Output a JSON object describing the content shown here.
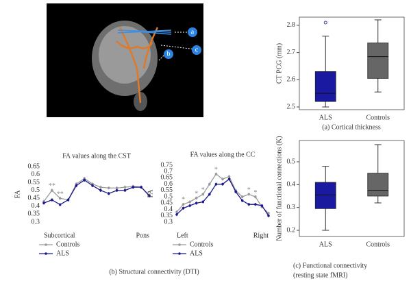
{
  "brain_image": {
    "labels": [
      "a",
      "b",
      "c"
    ]
  },
  "panel_b_caption": "(b) Structural connectivity (DTI)",
  "chart_data": [
    {
      "type": "line",
      "title": "FA values along the CST",
      "y_label": "FA",
      "categories": [
        "Subcortical",
        null,
        null,
        null,
        null,
        null,
        null,
        null,
        null,
        null,
        null,
        null,
        null,
        "Pons"
      ],
      "series": [
        {
          "name": "Controls",
          "color": "#999999",
          "values": [
            0.43,
            0.5,
            0.45,
            0.44,
            0.54,
            0.575,
            0.54,
            0.52,
            0.515,
            0.515,
            0.52,
            0.525,
            0.52,
            0.47
          ],
          "errors": [
            0.01,
            0.01,
            0.01,
            0.01,
            0.01,
            0.01,
            0.01,
            0.01,
            0.01,
            0.01,
            0.01,
            0.01,
            0.01,
            0.01
          ]
        },
        {
          "name": "ALS",
          "color": "#1a1a8c",
          "values": [
            0.42,
            0.44,
            0.41,
            0.44,
            0.53,
            0.565,
            0.53,
            0.5,
            0.48,
            0.5,
            0.5,
            0.52,
            0.52,
            0.465
          ],
          "errors": [
            0.01,
            0.01,
            0.01,
            0.01,
            0.01,
            0.01,
            0.01,
            0.01,
            0.01,
            0.01,
            0.01,
            0.01,
            0.01,
            0.01
          ]
        }
      ],
      "annotations": [
        {
          "text": "**",
          "category": 1,
          "y": 0.525
        },
        {
          "text": "**",
          "category": 2,
          "y": 0.475
        }
      ],
      "ylim": [
        0.3,
        0.65
      ],
      "yticks": [
        0.3,
        0.35,
        0.4,
        0.45,
        0.5,
        0.55,
        0.6,
        0.65
      ]
    },
    {
      "type": "line",
      "title": "FA values along the CC",
      "y_label": "FA",
      "categories": [
        "Left",
        null,
        null,
        null,
        null,
        null,
        null,
        null,
        null,
        null,
        null,
        null,
        null,
        null,
        "Right"
      ],
      "series": [
        {
          "name": "Controls",
          "color": "#999999",
          "values": [
            0.38,
            0.44,
            0.46,
            0.49,
            0.52,
            0.6,
            0.68,
            0.64,
            0.66,
            0.55,
            0.5,
            0.52,
            0.5,
            0.42,
            0.37
          ],
          "errors": [
            0.012,
            0.012,
            0.012,
            0.012,
            0.012,
            0.012,
            0.012,
            0.012,
            0.012,
            0.012,
            0.012,
            0.012,
            0.012,
            0.012,
            0.012
          ]
        },
        {
          "name": "ALS",
          "color": "#1a1a8c",
          "values": [
            0.36,
            0.41,
            0.43,
            0.45,
            0.46,
            0.52,
            0.6,
            0.6,
            0.64,
            0.54,
            0.47,
            0.44,
            0.44,
            0.43,
            0.35
          ],
          "errors": [
            0.012,
            0.012,
            0.012,
            0.012,
            0.012,
            0.012,
            0.012,
            0.012,
            0.012,
            0.012,
            0.012,
            0.012,
            0.012,
            0.012,
            0.012
          ]
        }
      ],
      "annotations": [
        {
          "text": "*",
          "category": 1,
          "y": 0.475
        },
        {
          "text": "*",
          "category": 3,
          "y": 0.52
        },
        {
          "text": "*",
          "category": 4,
          "y": 0.55
        },
        {
          "text": "*",
          "category": 6,
          "y": 0.71
        },
        {
          "text": "*",
          "category": 11,
          "y": 0.55
        },
        {
          "text": "*",
          "category": 12,
          "y": 0.53
        }
      ],
      "ylim": [
        0.3,
        0.75
      ],
      "yticks": [
        0.3,
        0.35,
        0.4,
        0.45,
        0.5,
        0.55,
        0.6,
        0.65,
        0.7,
        0.75
      ]
    },
    {
      "type": "box",
      "y_label": "CT PCG (mm)",
      "caption": [
        "(a) Cortical thickness"
      ],
      "categories": [
        "ALS",
        "Controls"
      ],
      "boxes": [
        {
          "color": "#1a1aa0",
          "min": 2.5,
          "q1": 2.52,
          "median": 2.55,
          "q3": 2.63,
          "max": 2.76,
          "outliers": [
            2.81
          ]
        },
        {
          "color": "#666666",
          "min": 2.555,
          "q1": 2.605,
          "median": 2.685,
          "q3": 2.735,
          "max": 2.82,
          "outliers": []
        }
      ],
      "ylim": [
        2.49,
        2.83
      ],
      "yticks": [
        2.5,
        2.6,
        2.7,
        2.8
      ]
    },
    {
      "type": "box",
      "y_label": "Number of functional connections (K)",
      "caption": [
        "(c) Functional connectivity",
        "(resting state fMRI)"
      ],
      "categories": [
        "ALS",
        "Controls"
      ],
      "boxes": [
        {
          "color": "#1a1aa0",
          "min": 0.2,
          "q1": 0.295,
          "median": 0.355,
          "q3": 0.41,
          "max": 0.48,
          "outliers": []
        },
        {
          "color": "#666666",
          "min": 0.32,
          "q1": 0.35,
          "median": 0.375,
          "q3": 0.45,
          "max": 0.575,
          "outliers": []
        }
      ],
      "ylim": [
        0.173,
        0.593
      ],
      "yticks": [
        0.2,
        0.3,
        0.4,
        0.5
      ]
    }
  ]
}
